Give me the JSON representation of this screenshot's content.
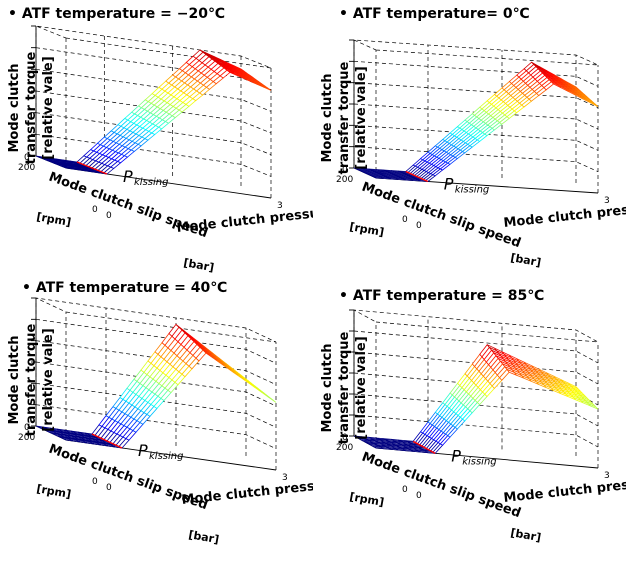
{
  "figure": {
    "panel_titles": [
      "• ATF temperature = −20℃",
      "• ATF temperature= 0℃",
      "• ATF temperature = 40℃",
      "• ATF temperature = 85℃"
    ]
  },
  "chart_data": [
    {
      "type": "surface",
      "title": "• ATF temperature = −20℃",
      "zlabel_line1": "Mode clutch",
      "zlabel_line2": "transfer torque",
      "zlabel_line3": "[relative vale]",
      "xlabel": "Mode clutch pressure",
      "xunit": "[bar]",
      "ylabel": "Mode clutch slip speed",
      "yunit": "[rpm]",
      "annotation": "P",
      "annotation_sub": "kissing",
      "x_ticks": [
        "0",
        "3"
      ],
      "y_ticks": [
        "0",
        "200"
      ],
      "z_ticks": [
        "0"
      ],
      "xlim": [
        0,
        3
      ],
      "ylim": [
        0,
        200
      ],
      "zlim": [
        0,
        1
      ],
      "kissing_pressure": 0.6,
      "plateau_level": 1.0,
      "saturation_start": 2.4,
      "high_end_value": 0.9,
      "slip_dependence": 0.08,
      "colormap": "jet",
      "kissing_line_color": "#ff0000"
    },
    {
      "type": "surface",
      "title": "• ATF temperature= 0℃",
      "zlabel_line1": "Mode clutch",
      "zlabel_line2": "transfer torque",
      "zlabel_line3": "[relative vale]",
      "xlabel": "Mode clutch pressure",
      "xunit": "[bar]",
      "ylabel": "Mode clutch slip speed",
      "yunit": "[rpm]",
      "annotation": "P",
      "annotation_sub": "kissing",
      "x_ticks": [
        "0",
        "3"
      ],
      "y_ticks": [
        "0",
        "200"
      ],
      "z_ticks": [
        "0"
      ],
      "xlim": [
        0,
        3
      ],
      "ylim": [
        0,
        200
      ],
      "zlim": [
        0,
        1
      ],
      "kissing_pressure": 0.7,
      "plateau_level": 0.92,
      "saturation_start": 2.4,
      "high_end_value": 0.75,
      "slip_dependence": 0.1,
      "colormap": "jet",
      "kissing_line_color": "#ff0000"
    },
    {
      "type": "surface",
      "title": "• ATF temperature = 40℃",
      "zlabel_line1": "Mode clutch",
      "zlabel_line2": "transfer torque",
      "zlabel_line3": "[relative vale]",
      "xlabel": "Mode clutch pressure",
      "xunit": "[bar]",
      "ylabel": "Mode clutch slip speed",
      "yunit": "[rpm]",
      "annotation": "P",
      "annotation_sub": "kissing",
      "x_ticks": [
        "0",
        "3"
      ],
      "y_ticks": [
        "0",
        "200"
      ],
      "z_ticks": [
        "0"
      ],
      "xlim": [
        0,
        3
      ],
      "ylim": [
        0,
        200
      ],
      "zlim": [
        0,
        1
      ],
      "kissing_pressure": 0.8,
      "plateau_level": 0.95,
      "saturation_start": 2.0,
      "high_end_value": 0.6,
      "slip_dependence": 0.12,
      "colormap": "jet",
      "kissing_line_color": "#ff0000"
    },
    {
      "type": "surface",
      "title": "• ATF temperature = 85℃",
      "zlabel_line1": "Mode clutch",
      "zlabel_line2": "transfer torque",
      "zlabel_line3": "[relative vale]",
      "xlabel": "Mode clutch pressure",
      "xunit": "[bar]",
      "ylabel": "Mode clutch slip speed",
      "yunit": "[rpm]",
      "annotation": "P",
      "annotation_sub": "kissing",
      "x_ticks": [
        "0",
        "3"
      ],
      "y_ticks": [
        "0",
        "200"
      ],
      "z_ticks": [
        "0"
      ],
      "xlim": [
        0,
        3
      ],
      "ylim": [
        0,
        200
      ],
      "zlim": [
        0,
        1
      ],
      "kissing_pressure": 0.8,
      "plateau_level": 0.82,
      "saturation_start": 1.8,
      "high_end_value": 0.55,
      "slip_dependence": 0.15,
      "colormap": "jet",
      "kissing_line_color": "#ff0000"
    }
  ]
}
